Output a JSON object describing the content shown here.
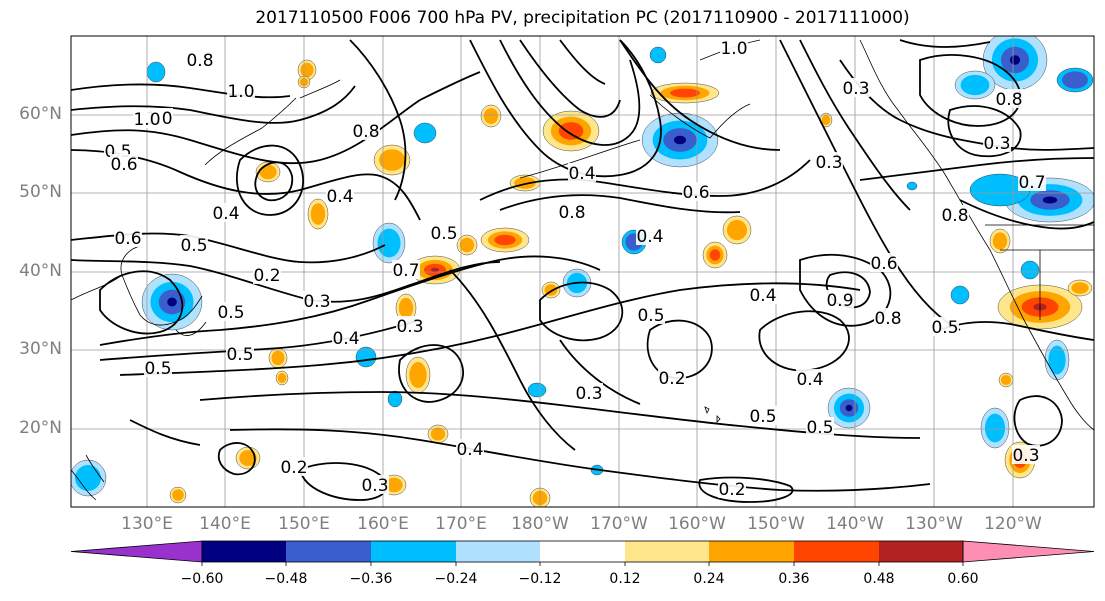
{
  "title": "2017110500 F006 700 hPa PV, precipitation PC (2017110900 - 2017111000)",
  "lat_labels": [
    "60°N",
    "50°N",
    "40°N",
    "30°N",
    "20°N"
  ],
  "lon_labels": [
    "130°E",
    "140°E",
    "150°E",
    "160°E",
    "170°E",
    "180°W",
    "170°W",
    "160°W",
    "150°W",
    "140°W",
    "130°W",
    "120°W"
  ],
  "colorbar": {
    "ticks": [
      "−0.60",
      "−0.48",
      "−0.36",
      "−0.24",
      "−0.12",
      "0.12",
      "0.24",
      "0.36",
      "0.48",
      "0.60"
    ],
    "colors": [
      "#9932cc",
      "#000080",
      "#3a5fcd",
      "#00bfff",
      "#b0e2ff",
      "#ffffff",
      "#ffe68a",
      "#ffa500",
      "#ff4500",
      "#b22222",
      "#ff8eb4"
    ]
  },
  "contour_labels": [
    "0.8",
    "1.0",
    "1.0",
    "0.5",
    "0.6",
    "0.6",
    "0.5",
    "0.4",
    "0.8",
    "0.5",
    "0.5",
    "0.5",
    "0.4",
    "0.3",
    "0.4",
    "0.2",
    "0.2",
    "0.4",
    "0.3",
    "0.7",
    "0.5",
    "0.8",
    "0.4",
    "0.6",
    "0.4",
    "0.2",
    "0.3",
    "0.4",
    "0.5",
    "0.5",
    "0.2",
    "1.0",
    "0.3",
    "0.3",
    "0.6",
    "0.3",
    "0.9",
    "0.8",
    "0.5",
    "0.4",
    "0.5",
    "1.0",
    "0.8",
    "0.3",
    "0.7",
    "0.8",
    "0.3"
  ]
}
